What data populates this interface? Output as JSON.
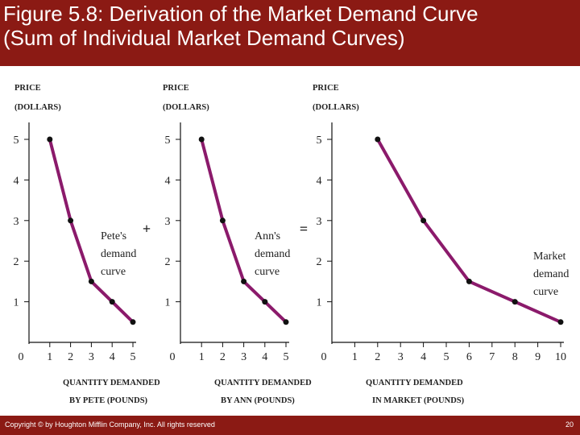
{
  "slide": {
    "title_line1": "Figure 5.8: Derivation of the Market Demand Curve",
    "title_line2": "(Sum of Individual Market Demand Curves)",
    "copyright": "Copyright © by Houghton Mifflin Company, Inc. All rights reserved",
    "page_number": "20"
  },
  "colors": {
    "background": "#8b1a14",
    "curve": "#8b1a6b",
    "point": "#111111",
    "axis": "#111111"
  },
  "operators": [
    "+",
    "="
  ],
  "chart_data": [
    {
      "type": "line",
      "ylabel": [
        "PRICE",
        "(DOLLARS)"
      ],
      "xlabel": [
        "QUANTITY DEMANDED",
        "BY PETE (POUNDS)"
      ],
      "x_ticks": [
        "0",
        "1",
        "2",
        "3",
        "4",
        "5"
      ],
      "y_ticks": [
        "1",
        "2",
        "3",
        "4",
        "5"
      ],
      "xlim": [
        0,
        5
      ],
      "ylim": [
        0,
        5
      ],
      "series": [
        {
          "label_lines": [
            "Pete's",
            "demand",
            "curve"
          ],
          "x": [
            1,
            2,
            3,
            4,
            5
          ],
          "y": [
            5,
            3,
            1.5,
            1,
            0.5
          ]
        }
      ]
    },
    {
      "type": "line",
      "ylabel": [
        "PRICE",
        "(DOLLARS)"
      ],
      "xlabel": [
        "QUANTITY DEMANDED",
        "BY ANN (POUNDS)"
      ],
      "x_ticks": [
        "0",
        "1",
        "2",
        "3",
        "4",
        "5"
      ],
      "y_ticks": [
        "1",
        "2",
        "3",
        "4",
        "5"
      ],
      "xlim": [
        0,
        5
      ],
      "ylim": [
        0,
        5
      ],
      "series": [
        {
          "label_lines": [
            "Ann's",
            "demand",
            "curve"
          ],
          "x": [
            1,
            2,
            3,
            4,
            5
          ],
          "y": [
            5,
            3,
            1.5,
            1,
            0.5
          ]
        }
      ]
    },
    {
      "type": "line",
      "ylabel": [
        "PRICE",
        "(DOLLARS)"
      ],
      "xlabel": [
        "QUANTITY DEMANDED",
        "IN MARKET (POUNDS)"
      ],
      "x_ticks": [
        "0",
        "1",
        "2",
        "3",
        "4",
        "5",
        "6",
        "7",
        "8",
        "9",
        "10"
      ],
      "y_ticks": [
        "1",
        "2",
        "3",
        "4",
        "5"
      ],
      "xlim": [
        0,
        10
      ],
      "ylim": [
        0,
        5
      ],
      "series": [
        {
          "label_lines": [
            "Market",
            "demand",
            "curve"
          ],
          "x": [
            2,
            4,
            6,
            8,
            10
          ],
          "y": [
            5,
            3,
            1.5,
            1,
            0.5
          ]
        }
      ]
    }
  ]
}
